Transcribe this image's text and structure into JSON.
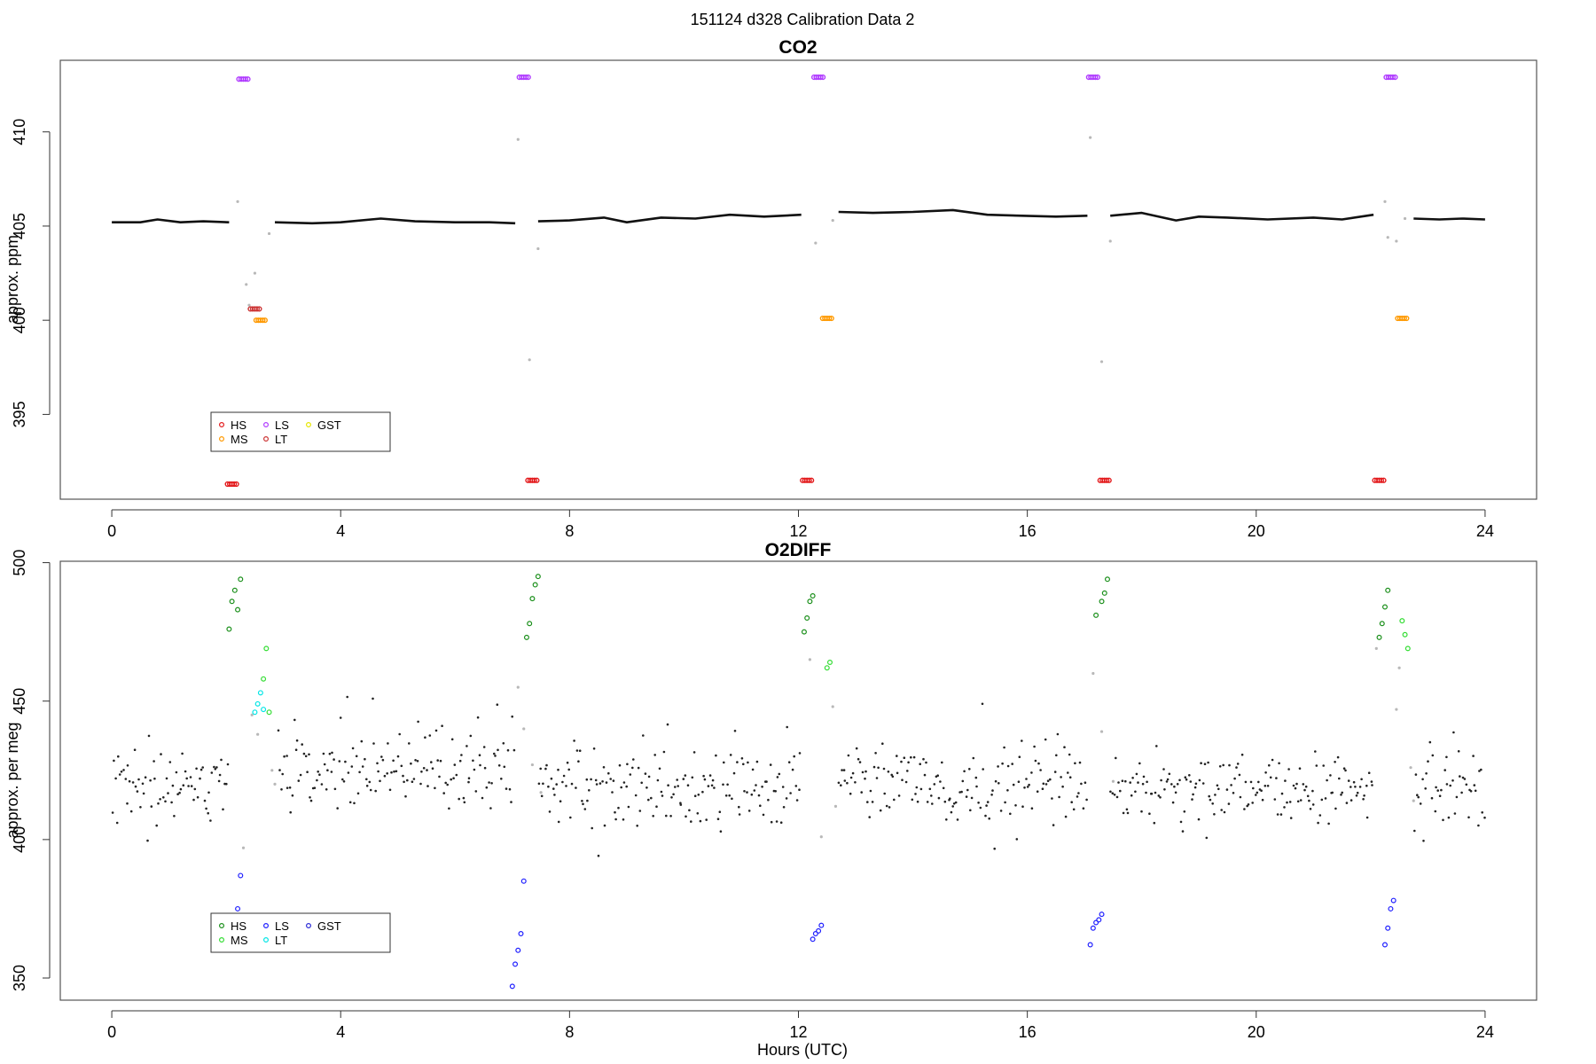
{
  "header": {
    "title": "151124   d328   Calibration Data 2"
  },
  "xlabel": "Hours (UTC)",
  "chart_data": [
    {
      "type": "scatter",
      "title": "CO2",
      "xlabel": "",
      "ylabel": "approx. ppm",
      "xlim": [
        -0.9,
        24.9
      ],
      "ylim": [
        390.5,
        413.8
      ],
      "xticks": [
        0,
        4,
        8,
        12,
        16,
        20,
        24
      ],
      "yticks": [
        395,
        400,
        405,
        410
      ],
      "grid": false,
      "legend_position": "bottom-left",
      "legend": [
        {
          "label": "HS",
          "color": "#e31a1c"
        },
        {
          "label": "MS",
          "color": "#ff9900"
        },
        {
          "label": "LS",
          "color": "#b03bff"
        },
        {
          "label": "LT",
          "color": "#cc3333"
        },
        {
          "label": "GST",
          "color": "#e6e600"
        }
      ],
      "baseline": [
        {
          "x": [
            0,
            0.5,
            0.8,
            1.2,
            1.6,
            2.05
          ],
          "y": [
            405.2,
            405.2,
            405.35,
            405.2,
            405.25,
            405.2
          ]
        },
        {
          "x": [
            2.85,
            3.5,
            4.0,
            4.7,
            5.3,
            6.0,
            6.6,
            7.05
          ],
          "y": [
            405.2,
            405.15,
            405.2,
            405.4,
            405.25,
            405.2,
            405.2,
            405.15
          ]
        },
        {
          "x": [
            7.45,
            8.0,
            8.6,
            9.0,
            9.6,
            10.2,
            10.8,
            11.4,
            12.05
          ],
          "y": [
            405.25,
            405.3,
            405.45,
            405.2,
            405.45,
            405.4,
            405.6,
            405.5,
            405.6
          ]
        },
        {
          "x": [
            12.7,
            13.3,
            14.0,
            14.7,
            15.3,
            15.9,
            16.5,
            17.05
          ],
          "y": [
            405.75,
            405.7,
            405.75,
            405.85,
            405.6,
            405.55,
            405.5,
            405.55
          ]
        },
        {
          "x": [
            17.45,
            18.0,
            18.6,
            19.0,
            19.5,
            20.2,
            21.0,
            21.5,
            22.05
          ],
          "y": [
            405.55,
            405.7,
            405.3,
            405.5,
            405.45,
            405.35,
            405.45,
            405.35,
            405.6
          ]
        },
        {
          "x": [
            22.75,
            23.2,
            23.6,
            24.0
          ],
          "y": [
            405.4,
            405.35,
            405.4,
            405.35
          ]
        }
      ],
      "cal_points": [
        {
          "label": "HS",
          "x": [
            2.1,
            7.35,
            12.15,
            17.35,
            22.15
          ],
          "y": [
            391.3,
            391.5,
            391.5,
            391.5,
            391.5
          ]
        },
        {
          "label": "MS",
          "x": [
            2.6,
            12.5,
            22.55
          ],
          "y": [
            400.0,
            400.1,
            400.1
          ]
        },
        {
          "label": "LS",
          "x": [
            2.3,
            7.2,
            12.35,
            17.15,
            22.35
          ],
          "y": [
            412.8,
            412.9,
            412.9,
            412.9,
            412.9
          ]
        },
        {
          "label": "LT",
          "x": [
            2.5
          ],
          "y": [
            400.6
          ]
        }
      ],
      "transition_points": {
        "x": [
          2.2,
          2.35,
          2.4,
          2.5,
          2.75,
          7.1,
          7.3,
          7.45,
          12.3,
          12.6,
          17.1,
          17.3,
          17.45,
          22.25,
          22.45,
          22.3,
          22.6
        ],
        "y": [
          406.3,
          401.9,
          400.8,
          402.5,
          404.6,
          409.6,
          397.9,
          403.8,
          404.1,
          405.3,
          409.7,
          397.8,
          404.2,
          406.3,
          404.2,
          404.4,
          405.4
        ]
      }
    },
    {
      "type": "scatter",
      "title": "O2DIFF",
      "xlabel": "Hours (UTC)",
      "ylabel": "approx. per meg",
      "xlim": [
        -0.9,
        24.9
      ],
      "ylim": [
        342,
        500.5
      ],
      "xticks": [
        0,
        4,
        8,
        12,
        16,
        20,
        24
      ],
      "yticks": [
        350,
        400,
        450,
        500
      ],
      "grid": false,
      "legend_position": "bottom-left",
      "legend": [
        {
          "label": "HS",
          "color": "#1a8f1a"
        },
        {
          "label": "MS",
          "color": "#33dd33"
        },
        {
          "label": "LS",
          "color": "#1f1fff"
        },
        {
          "label": "LT",
          "color": "#00e5e5"
        },
        {
          "label": "GST",
          "color": "#2b2bd6"
        }
      ],
      "segments": [
        {
          "x0": 0.0,
          "x1": 2.05,
          "mean": 420,
          "spread": 9
        },
        {
          "x0": 2.9,
          "x1": 7.05,
          "mean": 426,
          "spread": 11
        },
        {
          "x0": 7.45,
          "x1": 12.05,
          "mean": 419,
          "spread": 10
        },
        {
          "x0": 12.7,
          "x1": 17.05,
          "mean": 420,
          "spread": 9
        },
        {
          "x0": 17.45,
          "x1": 22.05,
          "mean": 419,
          "spread": 8
        },
        {
          "x0": 22.75,
          "x1": 24.0,
          "mean": 420,
          "spread": 9
        }
      ],
      "cal_points": [
        {
          "label": "HS",
          "x": [
            2.05,
            2.1,
            2.15,
            2.2,
            2.25,
            7.25,
            7.3,
            7.35,
            7.4,
            7.45,
            12.1,
            12.15,
            12.2,
            12.25,
            17.2,
            17.3,
            17.35,
            17.4,
            22.15,
            22.2,
            22.25,
            22.3
          ],
          "y": [
            476,
            486,
            490,
            483,
            494,
            473,
            478,
            487,
            492,
            495,
            475,
            480,
            486,
            488,
            481,
            486,
            489,
            494,
            473,
            478,
            484,
            490
          ]
        },
        {
          "label": "MS",
          "x": [
            2.65,
            2.7,
            2.75,
            12.5,
            12.55,
            22.55,
            22.6,
            22.65
          ],
          "y": [
            458,
            469,
            446,
            462,
            464,
            479,
            474,
            469
          ]
        },
        {
          "label": "LS",
          "x": [
            2.2,
            2.25,
            7.0,
            7.05,
            7.1,
            7.15,
            7.2,
            12.25,
            12.3,
            12.35,
            12.4,
            17.1,
            17.15,
            17.2,
            17.25,
            17.3,
            22.25,
            22.3,
            22.35,
            22.4
          ],
          "y": [
            375,
            387,
            347,
            355,
            360,
            366,
            385,
            364,
            366,
            367,
            369,
            362,
            368,
            370,
            371,
            373,
            362,
            368,
            375,
            378
          ]
        },
        {
          "label": "LT",
          "x": [
            2.5,
            2.55,
            2.6,
            2.65
          ],
          "y": [
            446,
            449,
            453,
            447
          ]
        }
      ],
      "transition_points": {
        "x": [
          2.3,
          2.45,
          2.55,
          2.8,
          2.85,
          7.1,
          7.2,
          7.35,
          7.5,
          12.2,
          12.4,
          12.6,
          12.65,
          17.15,
          17.3,
          17.5,
          22.1,
          22.45,
          22.5,
          22.7,
          22.75
        ],
        "y": [
          397,
          445,
          438,
          425,
          420,
          455,
          440,
          427,
          417,
          465,
          401,
          448,
          412,
          460,
          439,
          421,
          469,
          447,
          462,
          426,
          414
        ]
      }
    }
  ]
}
